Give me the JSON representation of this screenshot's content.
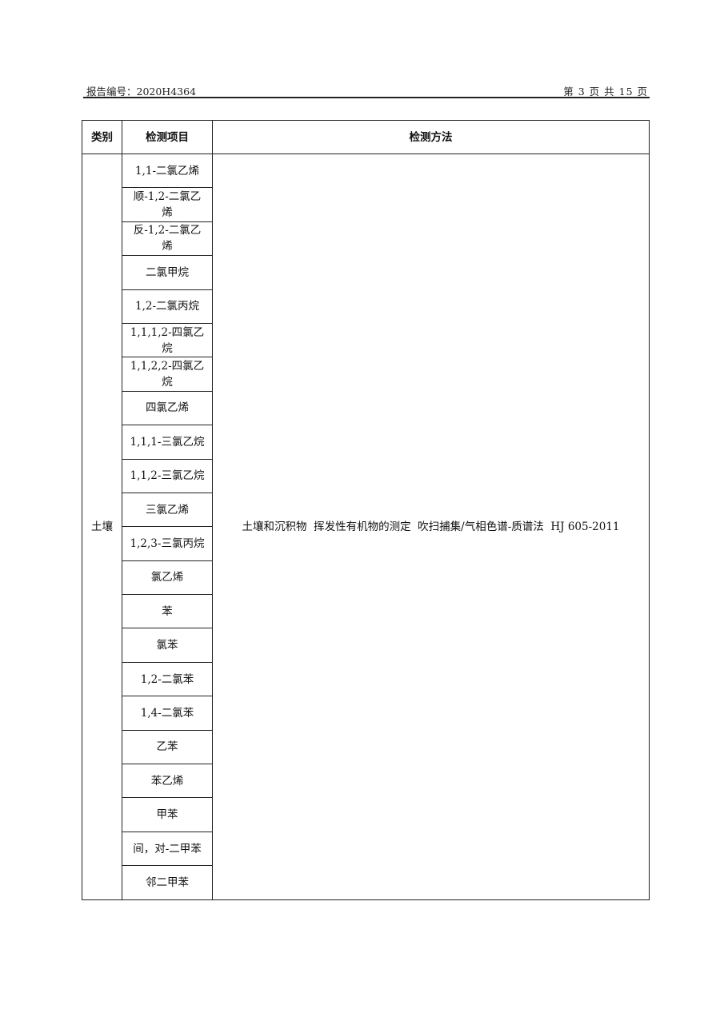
{
  "header": {
    "report_no": "报告编号：2020H4364",
    "page_info": "第 3 页 共 15 页"
  },
  "table": {
    "columns": [
      "类别",
      "检测项目",
      "检测方法"
    ],
    "category": "土壤",
    "method": "土壤和沉积物  挥发性有机物的测定  吹扫捕集/气相色谱-质谱法  HJ 605-2011",
    "items": [
      "1,1-二氯乙烯",
      "顺-1,2-二氯乙烯",
      "反-1,2-二氯乙烯",
      "二氯甲烷",
      "1,2-二氯丙烷",
      "1,1,1,2-四氯乙烷",
      "1,1,2,2-四氯乙烷",
      "四氯乙烯",
      "1,1,1-三氯乙烷",
      "1,1,2-三氯乙烷",
      "三氯乙烯",
      "1,2,3-三氯丙烷",
      "氯乙烯",
      "苯",
      "氯苯",
      "1,2-二氯苯",
      "1,4-二氯苯",
      "乙苯",
      "苯乙烯",
      "甲苯",
      "间，对-二甲苯",
      "邻二甲苯"
    ]
  }
}
